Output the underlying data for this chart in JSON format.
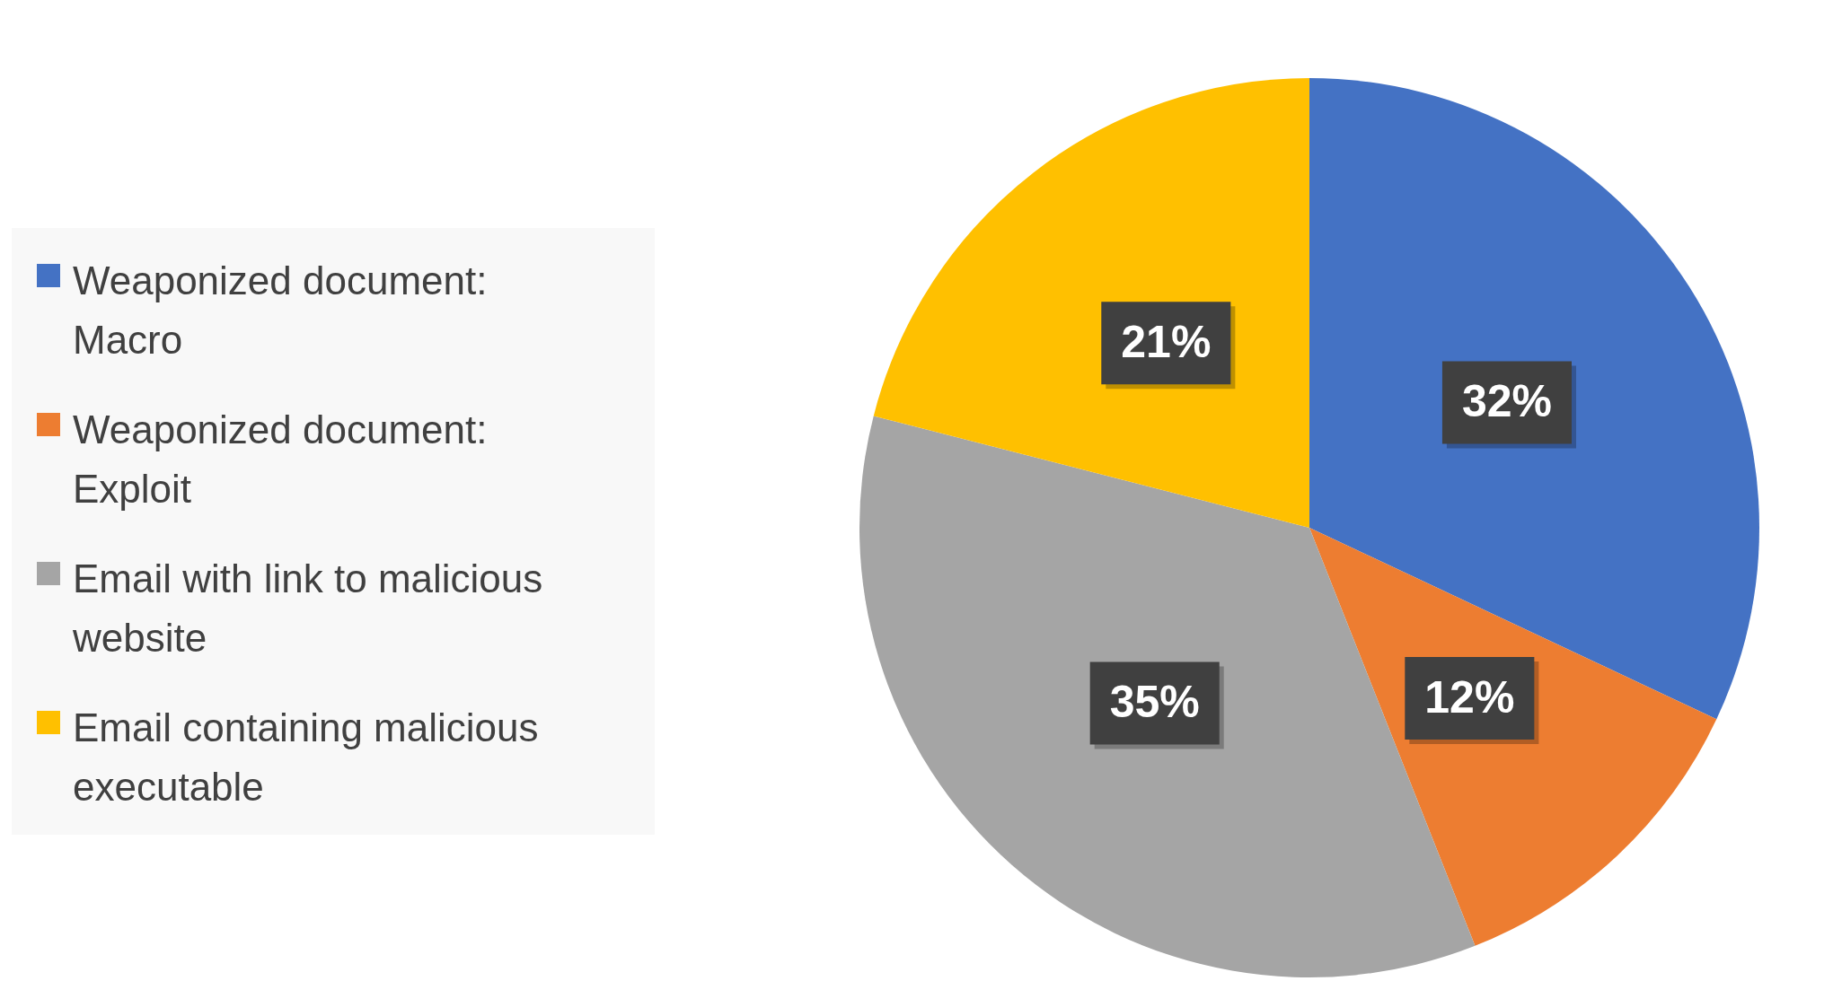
{
  "chart_data": {
    "type": "pie",
    "categories": [
      "Weaponized document: Macro",
      "Weaponized document: Exploit",
      "Email with link to malicious website",
      "Email containing malicious executable"
    ],
    "values": [
      32,
      12,
      35,
      21
    ],
    "colors": [
      "#4472c4",
      "#ed7d31",
      "#a5a5a5",
      "#ffc000"
    ],
    "value_labels": [
      "32%",
      "12%",
      "35%",
      "21%"
    ],
    "legend": "left"
  }
}
